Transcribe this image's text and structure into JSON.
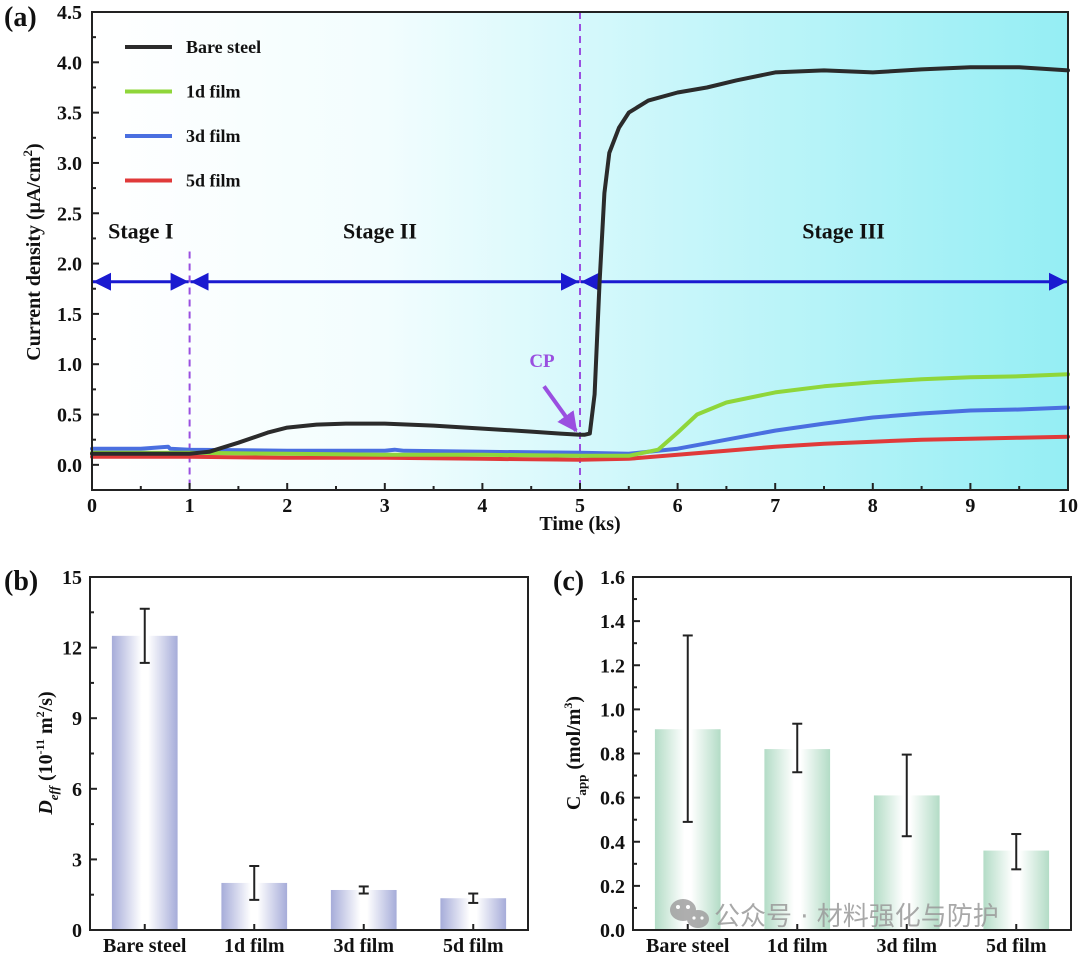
{
  "chart_data": [
    {
      "panel": "(a)",
      "type": "line",
      "title": "",
      "xlabel": "Time (ks)",
      "ylabel": "Current density (μA/cm²)",
      "xlim": [
        0,
        10
      ],
      "ylim": [
        -0.25,
        4.5
      ],
      "xticks": [
        0,
        1,
        2,
        3,
        4,
        5,
        6,
        7,
        8,
        9,
        10
      ],
      "yticks": [
        0.0,
        0.5,
        1.0,
        1.5,
        2.0,
        2.5,
        3.0,
        3.5,
        4.0,
        4.5
      ],
      "ytick_labels": [
        "0.0",
        "0.5",
        "1.0",
        "1.5",
        "2.0",
        "2.5",
        "3.0",
        "3.5",
        "4.0",
        "4.5"
      ],
      "xtick_labels": [
        "0",
        "1",
        "2",
        "3",
        "4",
        "5",
        "6",
        "7",
        "8",
        "9",
        "10"
      ],
      "grid": false,
      "legend_position": "top-left",
      "background": "gradient white to cyan (left to right)",
      "series": [
        {
          "name": "Bare steel",
          "color": "#2b2b2b",
          "x": [
            0,
            0.5,
            1.0,
            1.2,
            1.5,
            1.8,
            2.0,
            2.3,
            2.6,
            3.0,
            3.5,
            4.0,
            4.5,
            4.8,
            5.0,
            5.05,
            5.1,
            5.15,
            5.2,
            5.25,
            5.3,
            5.4,
            5.5,
            5.7,
            6.0,
            6.3,
            6.6,
            7.0,
            7.5,
            8.0,
            8.5,
            9.0,
            9.5,
            10.0
          ],
          "y": [
            0.11,
            0.11,
            0.11,
            0.13,
            0.22,
            0.32,
            0.37,
            0.4,
            0.41,
            0.41,
            0.39,
            0.36,
            0.33,
            0.31,
            0.3,
            0.3,
            0.31,
            0.7,
            1.8,
            2.7,
            3.1,
            3.35,
            3.5,
            3.62,
            3.7,
            3.75,
            3.82,
            3.9,
            3.92,
            3.9,
            3.93,
            3.95,
            3.95,
            3.92
          ]
        },
        {
          "name": "1d film",
          "color": "#8fd63a",
          "x": [
            0,
            1,
            2,
            3,
            4,
            5,
            5.5,
            5.8,
            6.0,
            6.2,
            6.5,
            7.0,
            7.5,
            8.0,
            8.5,
            9.0,
            9.5,
            10.0
          ],
          "y": [
            0.12,
            0.12,
            0.11,
            0.1,
            0.1,
            0.09,
            0.09,
            0.15,
            0.32,
            0.5,
            0.62,
            0.72,
            0.78,
            0.82,
            0.85,
            0.87,
            0.88,
            0.9
          ]
        },
        {
          "name": "3d film",
          "color": "#4a6fe0",
          "x": [
            0,
            0.5,
            0.78,
            0.8,
            1,
            2,
            3,
            3.1,
            3.2,
            4,
            5,
            5.5,
            6.0,
            6.5,
            7.0,
            7.5,
            8.0,
            8.5,
            9.0,
            9.5,
            10.0
          ],
          "y": [
            0.16,
            0.16,
            0.18,
            0.16,
            0.15,
            0.14,
            0.14,
            0.15,
            0.14,
            0.13,
            0.12,
            0.11,
            0.16,
            0.25,
            0.34,
            0.41,
            0.47,
            0.51,
            0.54,
            0.55,
            0.57
          ]
        },
        {
          "name": "5d film",
          "color": "#e03a3a",
          "x": [
            0,
            1,
            2,
            3,
            4,
            5,
            5.5,
            6.0,
            6.5,
            7.0,
            7.5,
            8.0,
            8.5,
            9.0,
            9.5,
            10.0
          ],
          "y": [
            0.08,
            0.08,
            0.07,
            0.07,
            0.06,
            0.05,
            0.06,
            0.1,
            0.14,
            0.18,
            0.21,
            0.23,
            0.25,
            0.26,
            0.27,
            0.28
          ]
        }
      ],
      "annotations": {
        "vertical_lines_x": [
          1,
          5
        ],
        "vertical_line_color": "#9a4fe0",
        "arrow_y": 1.82,
        "arrow_color": "#1a1ad0",
        "stages": [
          {
            "label": "Stage I",
            "x_start": 0,
            "x_end": 1
          },
          {
            "label": "Stage II",
            "x_start": 1,
            "x_end": 5
          },
          {
            "label": "Stage III",
            "x_start": 5,
            "x_end": 10
          }
        ],
        "cp": {
          "label": "CP",
          "x": 5.0,
          "y": 0.3
        }
      }
    },
    {
      "panel": "(b)",
      "type": "bar",
      "xlabel": "",
      "ylabel": "D_eff (10⁻¹¹ m²/s)",
      "categories": [
        "Bare steel",
        "1d film",
        "3d film",
        "5d film"
      ],
      "values": [
        12.5,
        2.0,
        1.7,
        1.35
      ],
      "error": [
        1.15,
        0.72,
        0.15,
        0.2
      ],
      "ylim": [
        0,
        15
      ],
      "yticks": [
        0,
        3,
        6,
        9,
        12,
        15
      ],
      "ytick_labels": [
        "0",
        "3",
        "6",
        "9",
        "12",
        "15"
      ],
      "bar_color": "#a9b0dc",
      "grid": false
    },
    {
      "panel": "(c)",
      "type": "bar",
      "xlabel": "",
      "ylabel": "C_app (mol/m³)",
      "categories": [
        "Bare steel",
        "1d film",
        "3d film",
        "5d film"
      ],
      "values": [
        0.91,
        0.82,
        0.61,
        0.36
      ],
      "error_low": [
        0.49,
        0.715,
        0.425,
        0.275
      ],
      "error_high": [
        1.335,
        0.935,
        0.795,
        0.435
      ],
      "ylim": [
        0,
        1.6
      ],
      "yticks": [
        0.0,
        0.2,
        0.4,
        0.6,
        0.8,
        1.0,
        1.2,
        1.4,
        1.6
      ],
      "ytick_labels": [
        "0.0",
        "0.2",
        "0.4",
        "0.6",
        "0.8",
        "1.0",
        "1.2",
        "1.4",
        "1.6"
      ],
      "bar_color": "#a8d6bc",
      "grid": false
    }
  ],
  "labels": {
    "panel_a": "(a)",
    "panel_b": "(b)",
    "panel_c": "(c)",
    "a_xlabel": "Time (ks)",
    "a_ylabel_main": "Current density (μA/cm",
    "a_ylabel_sup": "2",
    "a_ylabel_end": ")",
    "b_ylabel_main": "D",
    "b_ylabel_sub": "eff",
    "b_ylabel_mid": " (10",
    "b_ylabel_sup": "-11",
    "b_ylabel_mid2": " m",
    "b_ylabel_sup2": "2",
    "b_ylabel_end": "/s)",
    "c_ylabel_main": "C",
    "c_ylabel_sub": "app",
    "c_ylabel_mid": " (mol/m",
    "c_ylabel_sup": "3",
    "c_ylabel_end": ")",
    "stage1": "Stage I",
    "stage2": "Stage II",
    "stage3": "Stage III",
    "cp": "CP"
  },
  "watermark": {
    "text": "公众号 · 材料强化与防护",
    "icon": "wechat-icon"
  }
}
